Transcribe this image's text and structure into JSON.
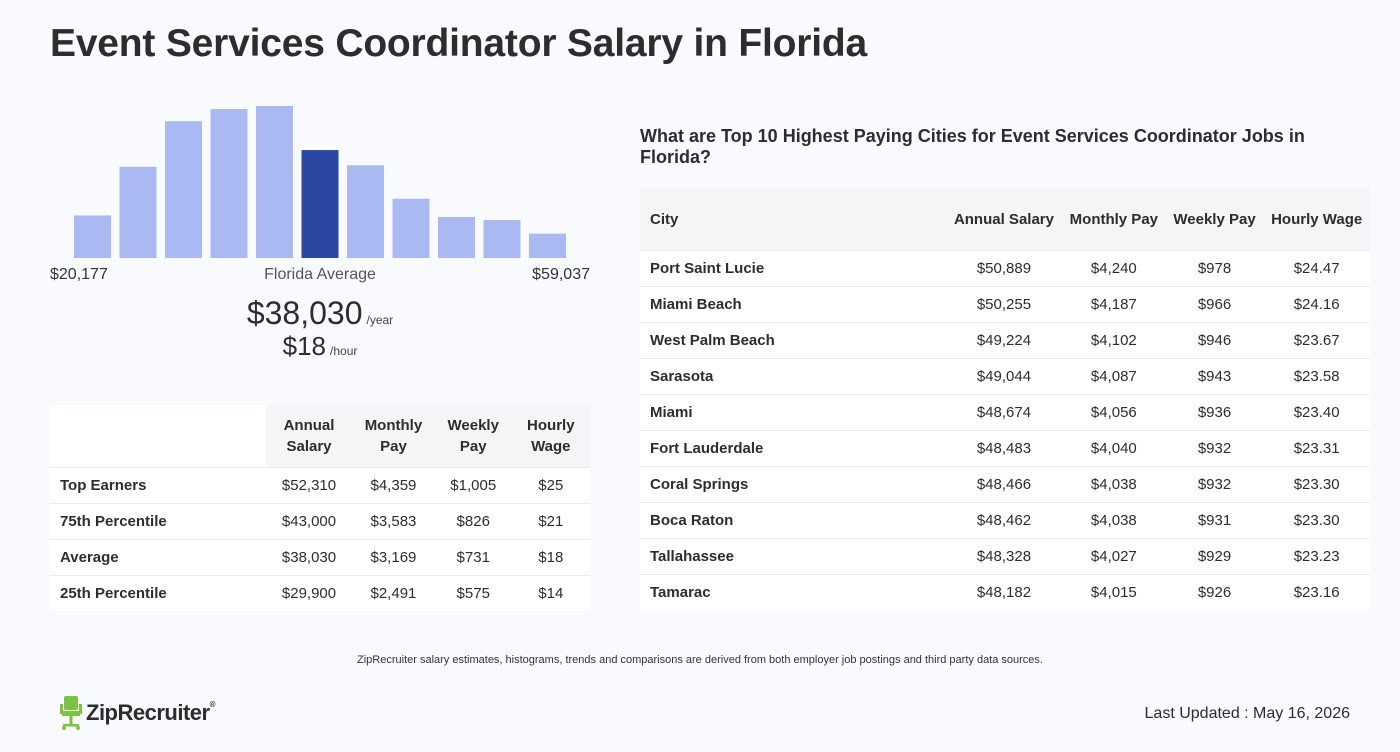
{
  "page_title": "Event Services Coordinator Salary in Florida",
  "histogram": {
    "min_label": "$20,177",
    "max_label": "$59,037",
    "center_label": "Florida Average",
    "relative_heights": [
      0.28,
      0.6,
      0.9,
      0.98,
      1.0,
      0.71,
      0.61,
      0.39,
      0.27,
      0.25,
      0.16
    ],
    "highlight_index": 5,
    "bar_color": "#aab9f1",
    "highlight_color": "#2a47a1"
  },
  "average": {
    "annual_value": "$38,030",
    "annual_unit": "/year",
    "hourly_value": "$18",
    "hourly_unit": "/hour"
  },
  "percentile_table": {
    "headers": [
      "Annual Salary",
      "Monthly Pay",
      "Weekly Pay",
      "Hourly Wage"
    ],
    "rows": [
      {
        "label": "Top Earners",
        "cells": [
          "$52,310",
          "$4,359",
          "$1,005",
          "$25"
        ]
      },
      {
        "label": "75th Percentile",
        "cells": [
          "$43,000",
          "$3,583",
          "$826",
          "$21"
        ]
      },
      {
        "label": "Average",
        "cells": [
          "$38,030",
          "$3,169",
          "$731",
          "$18"
        ]
      },
      {
        "label": "25th Percentile",
        "cells": [
          "$29,900",
          "$2,491",
          "$575",
          "$14"
        ]
      }
    ]
  },
  "cities": {
    "title": "What are Top 10 Highest Paying Cities for Event Services Coordinator Jobs in Florida?",
    "headers": [
      "City",
      "Annual Salary",
      "Monthly Pay",
      "Weekly Pay",
      "Hourly Wage"
    ],
    "rows": [
      {
        "city": "Port Saint Lucie",
        "cells": [
          "$50,889",
          "$4,240",
          "$978",
          "$24.47"
        ]
      },
      {
        "city": "Miami Beach",
        "cells": [
          "$50,255",
          "$4,187",
          "$966",
          "$24.16"
        ]
      },
      {
        "city": "West Palm Beach",
        "cells": [
          "$49,224",
          "$4,102",
          "$946",
          "$23.67"
        ]
      },
      {
        "city": "Sarasota",
        "cells": [
          "$49,044",
          "$4,087",
          "$943",
          "$23.58"
        ]
      },
      {
        "city": "Miami",
        "cells": [
          "$48,674",
          "$4,056",
          "$936",
          "$23.40"
        ]
      },
      {
        "city": "Fort Lauderdale",
        "cells": [
          "$48,483",
          "$4,040",
          "$932",
          "$23.31"
        ]
      },
      {
        "city": "Coral Springs",
        "cells": [
          "$48,466",
          "$4,038",
          "$932",
          "$23.30"
        ]
      },
      {
        "city": "Boca Raton",
        "cells": [
          "$48,462",
          "$4,038",
          "$931",
          "$23.30"
        ]
      },
      {
        "city": "Tallahassee",
        "cells": [
          "$48,328",
          "$4,027",
          "$929",
          "$23.23"
        ]
      },
      {
        "city": "Tamarac",
        "cells": [
          "$48,182",
          "$4,015",
          "$926",
          "$23.16"
        ]
      }
    ]
  },
  "footnote": "ZipRecruiter salary estimates, histograms, trends and comparisons are derived from both employer job postings and third party data sources.",
  "logo": {
    "text": "ZipRecruiter",
    "mark": "®",
    "icon": "zip-chair-icon",
    "icon_color": "#7dc242"
  },
  "last_updated": "Last Updated : May 16, 2026"
}
